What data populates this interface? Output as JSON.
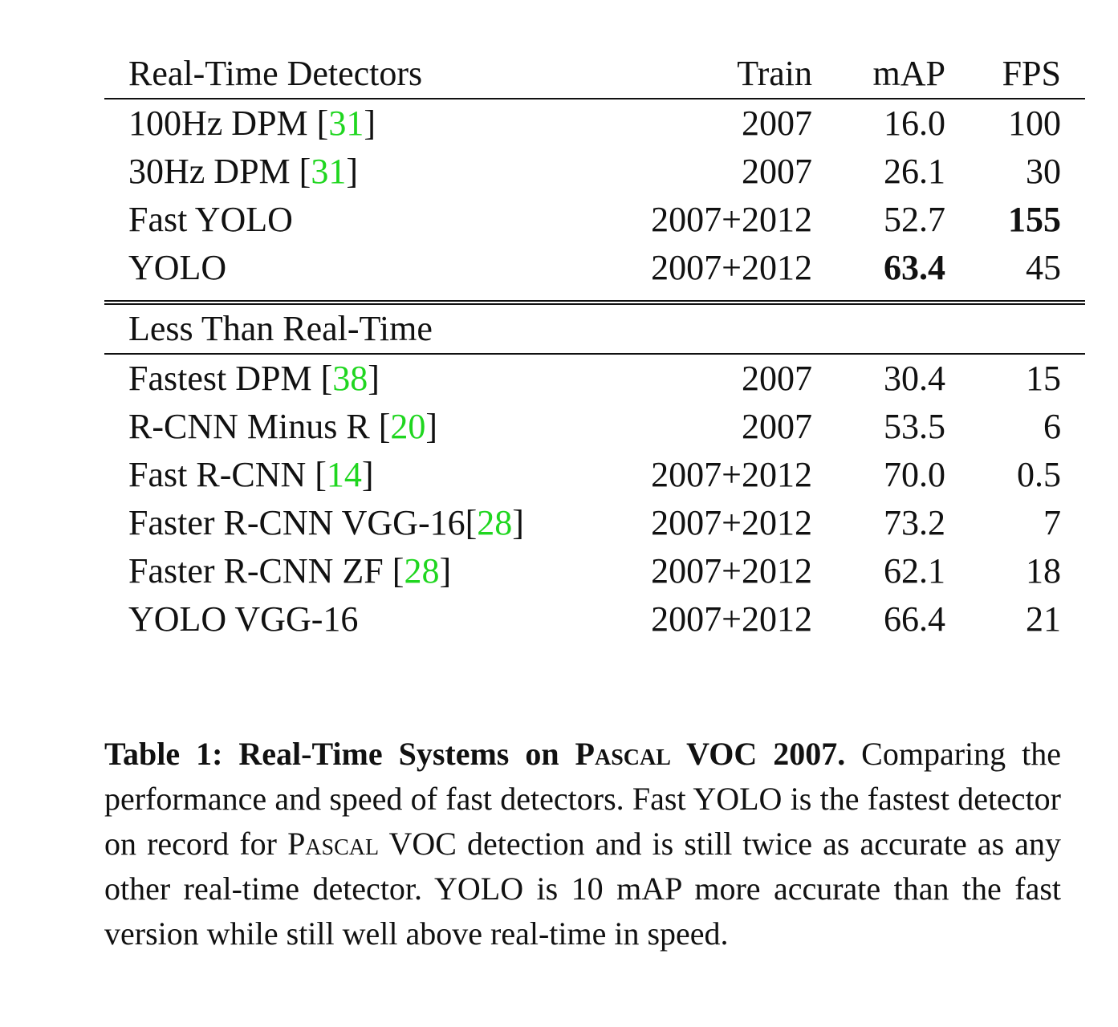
{
  "header": {
    "name": "Real-Time Detectors",
    "train": "Train",
    "map": "mAP",
    "fps": "FPS"
  },
  "realtime_rows": [
    {
      "name": "100Hz DPM [",
      "cite": "31",
      "close": "]",
      "train": "2007",
      "map": "16.0",
      "fps": "100"
    },
    {
      "name": "30Hz DPM [",
      "cite": "31",
      "close": "]",
      "train": "2007",
      "map": "26.1",
      "fps": "30"
    },
    {
      "name": "Fast YOLO",
      "cite": "",
      "close": "",
      "train": "2007+2012",
      "map": "52.7",
      "fps": "155"
    },
    {
      "name": "YOLO",
      "cite": "",
      "close": "",
      "train": "2007+2012",
      "map": "63.4",
      "fps": "45"
    }
  ],
  "section2_label": "Less Than Real-Time",
  "slow_rows": [
    {
      "name": "Fastest DPM [",
      "cite": "38",
      "close": "]",
      "train": "2007",
      "map": "30.4",
      "fps": "15"
    },
    {
      "name": "R-CNN Minus R [",
      "cite": "20",
      "close": "]",
      "train": "2007",
      "map": "53.5",
      "fps": "6"
    },
    {
      "name": "Fast R-CNN [",
      "cite": "14",
      "close": "]",
      "train": "2007+2012",
      "map": "70.0",
      "fps": "0.5"
    },
    {
      "name": "Faster R-CNN VGG-16[",
      "cite": "28",
      "close": "]",
      "train": "2007+2012",
      "map": "73.2",
      "fps": "7"
    },
    {
      "name": "Faster R-CNN ZF [",
      "cite": "28",
      "close": "]",
      "train": "2007+2012",
      "map": "62.1",
      "fps": "18"
    },
    {
      "name": "YOLO VGG-16",
      "cite": "",
      "close": "",
      "train": "2007+2012",
      "map": "66.4",
      "fps": "21"
    }
  ],
  "caption": {
    "label": "Table 1:",
    "title_a": "Real-Time Systems on ",
    "title_sc": "Pascal",
    "title_b": " VOC 2007.",
    "body_a": " Comparing the performance and speed of fast detectors. Fast YOLO is the fastest detector on record for ",
    "body_sc": "Pascal",
    "body_b": " VOC detection and is still twice as accurate as any other real-time detector. YOLO is 10 mAP more accurate than the fast version while still well above real-time in speed."
  }
}
